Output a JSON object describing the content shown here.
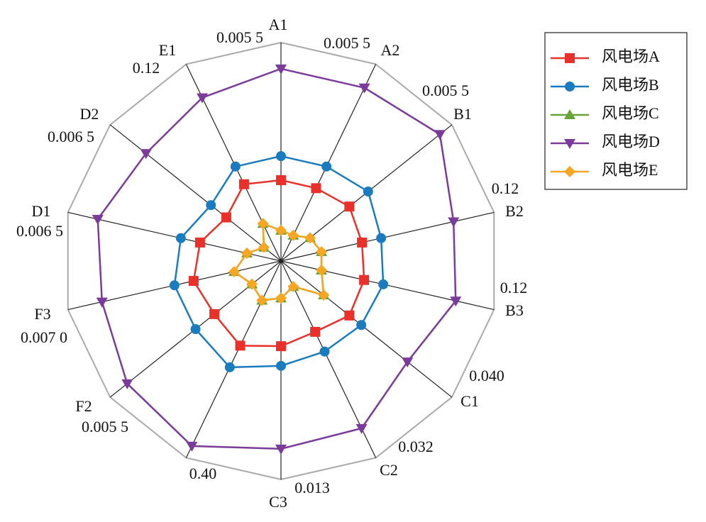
{
  "chart_data": {
    "type": "radar",
    "categories": [
      "A1",
      "A2",
      "B1",
      "B2",
      "B3",
      "C1",
      "C2",
      "C3",
      null,
      "F2",
      "F3",
      "D1",
      "D2",
      "E1"
    ],
    "axis_max_labels": [
      "0.005 5",
      "0.005 5",
      "0.005 5",
      "0.12",
      "0.12",
      "0.040",
      "0.032",
      "0.013",
      "0.40",
      "0.005 5",
      "0.007 0",
      "0.006 5",
      "0.006 5",
      "0.12"
    ],
    "rlim": [
      0,
      1
    ],
    "series": [
      {
        "name": "风电场A",
        "color": "#e8312a",
        "marker": "square",
        "values": [
          0.37,
          0.37,
          0.4,
          0.38,
          0.39,
          0.4,
          0.36,
          0.39,
          0.43,
          0.39,
          0.41,
          0.38,
          0.32,
          0.39
        ]
      },
      {
        "name": "风电场B",
        "color": "#1a7bbf",
        "marker": "circle",
        "values": [
          0.48,
          0.48,
          0.51,
          0.47,
          0.48,
          0.47,
          0.46,
          0.48,
          0.54,
          0.5,
          0.5,
          0.47,
          0.41,
          0.48
        ]
      },
      {
        "name": "风电场C",
        "color": "#6aa338",
        "marker": "triangle-up",
        "values": [
          0.14,
          0.13,
          0.17,
          0.19,
          0.19,
          0.25,
          0.13,
          0.17,
          0.2,
          0.17,
          0.22,
          0.16,
          0.1,
          0.19
        ]
      },
      {
        "name": "风电场D",
        "color": "#7b3b9a",
        "marker": "triangle-down",
        "values": [
          0.88,
          0.88,
          0.93,
          0.81,
          0.82,
          0.74,
          0.85,
          0.86,
          0.94,
          0.9,
          0.84,
          0.86,
          0.79,
          0.83
        ]
      },
      {
        "name": "风电场E",
        "color": "#f5a623",
        "marker": "diamond",
        "values": [
          0.14,
          0.13,
          0.17,
          0.19,
          0.19,
          0.25,
          0.13,
          0.17,
          0.2,
          0.17,
          0.22,
          0.16,
          0.1,
          0.19
        ]
      }
    ],
    "legend": "upper right"
  }
}
